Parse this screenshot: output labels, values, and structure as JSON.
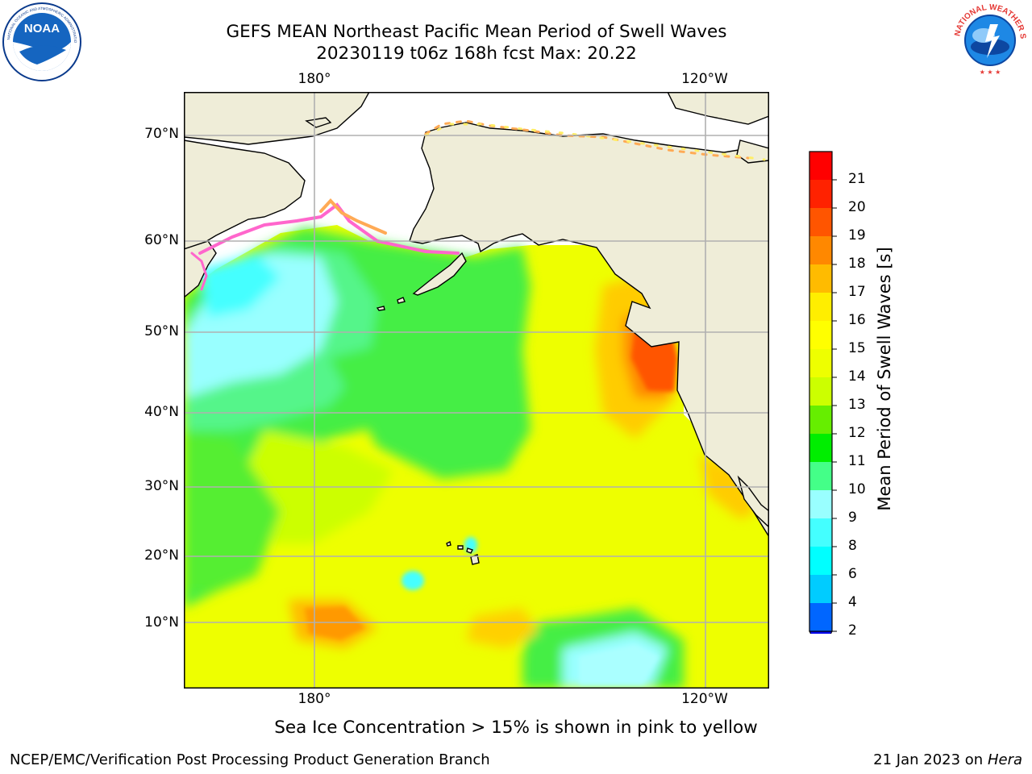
{
  "header": {
    "title_line1": "GEFS MEAN Northeast Pacific Mean Period of Swell Waves",
    "title_line2": "20230119 t06z 168h fcst   Max: 20.22"
  },
  "logos": {
    "noaa": {
      "text": "NOAA",
      "ring_text": "NATIONAL OCEANIC AND ATMOSPHERIC ADMINISTRATION · U.S. DEPARTMENT OF COMMERCE"
    },
    "nws": {
      "ring_text": "NATIONAL WEATHER SERVICE"
    }
  },
  "map": {
    "lat_labels": [
      "70°N",
      "60°N",
      "50°N",
      "40°N",
      "30°N",
      "20°N",
      "10°N"
    ],
    "lon_labels_top": [
      "180°",
      "120°W"
    ],
    "lon_labels_bottom": [
      "180°",
      "120°W"
    ],
    "colors": {
      "land": "#efedd8",
      "ice_free_ocean": "#ffffff",
      "grid": "#b0b0b0",
      "sea_ice": [
        "#ff66cc",
        "#ffaa55",
        "#ffee66"
      ]
    }
  },
  "colorbar": {
    "title": "Mean Period of Swell Waves [s]",
    "ticks": [
      "2",
      "4",
      "6",
      "8",
      "9",
      "10",
      "11",
      "12",
      "13",
      "14",
      "15",
      "16",
      "17",
      "18",
      "19",
      "20",
      "21"
    ],
    "colors": [
      "#0066ff",
      "#00ccff",
      "#00ffff",
      "#44ffff",
      "#99ffff",
      "#44ff88",
      "#00ee00",
      "#66ee00",
      "#ccff00",
      "#eeff00",
      "#ffff00",
      "#ffee00",
      "#ffbb00",
      "#ff8800",
      "#ff5500",
      "#ff2200",
      "#ff0000"
    ],
    "min_extend_color": "#0000ee"
  },
  "note": "Sea Ice Concentration > 15% is shown in pink to yellow",
  "footer": {
    "left": "NCEP/EMC/Verification Post Processing Product Generation Branch",
    "right_prefix": "21 Jan 2023 on ",
    "right_host": "Hera"
  }
}
